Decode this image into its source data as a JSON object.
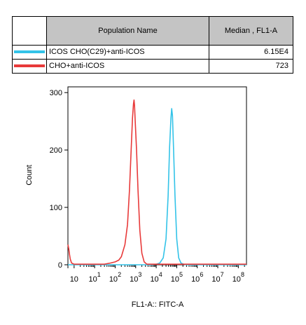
{
  "legend": {
    "header": {
      "population": "Population Name",
      "median": "Median , FL1-A"
    },
    "rows": [
      {
        "name": "ICOS CHO(C29)+anti-ICOS",
        "median": "6.15E4",
        "color": "#33c3e8"
      },
      {
        "name": "CHO+anti-ICOS",
        "median": "723",
        "color": "#e83a3a"
      }
    ]
  },
  "chart_data": {
    "type": "line",
    "xlabel": "FL1-A:: FITC-A",
    "ylabel": "Count",
    "x_scale": "log",
    "xlim": [
      0.5,
      250000000
    ],
    "ylim": [
      0,
      310
    ],
    "y_ticks": [
      0,
      100,
      200,
      300
    ],
    "x_ticks": [
      {
        "value": 1,
        "base": "10",
        "exp": ""
      },
      {
        "value": 10,
        "base": "10",
        "exp": "1"
      },
      {
        "value": 100,
        "base": "10",
        "exp": "2"
      },
      {
        "value": 1000,
        "base": "10",
        "exp": "3"
      },
      {
        "value": 10000,
        "base": "10",
        "exp": "4"
      },
      {
        "value": 100000,
        "base": "10",
        "exp": "5"
      },
      {
        "value": 1000000,
        "base": "10",
        "exp": "6"
      },
      {
        "value": 10000000,
        "base": "10",
        "exp": "7"
      },
      {
        "value": 100000000,
        "base": "10",
        "exp": "8"
      }
    ],
    "series": [
      {
        "name": "CHO+anti-ICOS",
        "color": "#e83a3a",
        "points": [
          [
            0.5,
            35
          ],
          [
            0.55,
            28
          ],
          [
            0.6,
            18
          ],
          [
            0.65,
            10
          ],
          [
            0.75,
            3
          ],
          [
            1,
            1
          ],
          [
            3,
            1
          ],
          [
            10,
            1
          ],
          [
            30,
            1
          ],
          [
            60,
            3
          ],
          [
            100,
            5
          ],
          [
            150,
            8
          ],
          [
            200,
            14
          ],
          [
            300,
            35
          ],
          [
            400,
            70
          ],
          [
            500,
            130
          ],
          [
            600,
            200
          ],
          [
            700,
            255
          ],
          [
            780,
            280
          ],
          [
            830,
            287
          ],
          [
            880,
            278
          ],
          [
            950,
            250
          ],
          [
            1100,
            200
          ],
          [
            1300,
            130
          ],
          [
            1600,
            60
          ],
          [
            2000,
            20
          ],
          [
            2600,
            5
          ],
          [
            3500,
            1
          ],
          [
            10000000,
            1
          ],
          [
            250000000,
            1
          ]
        ]
      },
      {
        "name": "ICOS CHO(C29)+anti-ICOS",
        "color": "#33c3e8",
        "points": [
          [
            0.5,
            0
          ],
          [
            5000,
            0
          ],
          [
            10000,
            1
          ],
          [
            15000,
            3
          ],
          [
            22000,
            12
          ],
          [
            30000,
            45
          ],
          [
            38000,
            120
          ],
          [
            45000,
            205
          ],
          [
            52000,
            255
          ],
          [
            57000,
            272
          ],
          [
            62000,
            260
          ],
          [
            70000,
            200
          ],
          [
            82000,
            120
          ],
          [
            100000,
            45
          ],
          [
            125000,
            12
          ],
          [
            160000,
            3
          ],
          [
            220000,
            1
          ],
          [
            300000,
            0
          ],
          [
            250000000,
            0
          ]
        ]
      }
    ]
  }
}
